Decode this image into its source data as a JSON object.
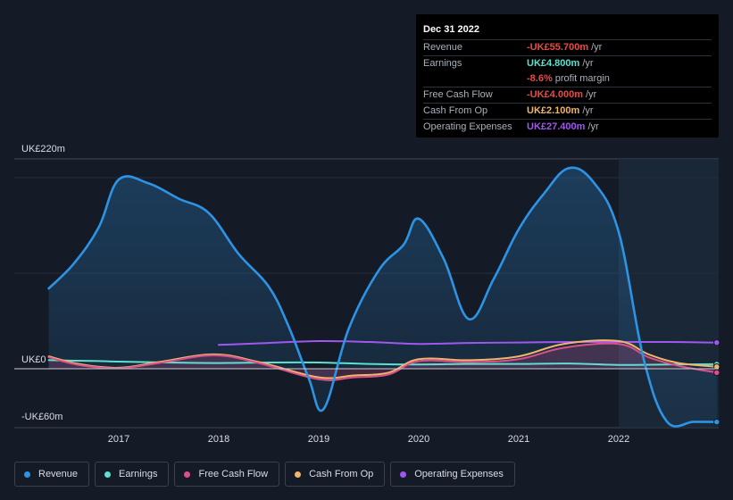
{
  "tooltip": {
    "date": "Dec 31 2022",
    "rows": [
      {
        "label": "Revenue",
        "value": "-UK£55.700m",
        "unit": "/yr",
        "color": "#e84a4a"
      },
      {
        "label": "Earnings",
        "value": "UK£4.800m",
        "unit": "/yr",
        "color": "#5de0cf"
      },
      {
        "label": "",
        "value": "-8.6%",
        "unit": "profit margin",
        "color": "#e84a4a"
      },
      {
        "label": "Free Cash Flow",
        "value": "-UK£4.000m",
        "unit": "/yr",
        "color": "#e84a4a"
      },
      {
        "label": "Cash From Op",
        "value": "UK£2.100m",
        "unit": "/yr",
        "color": "#f0b46e"
      },
      {
        "label": "Operating Expenses",
        "value": "UK£27.400m",
        "unit": "/yr",
        "color": "#a057f0"
      }
    ]
  },
  "legend": [
    {
      "label": "Revenue",
      "color": "#2d94e5"
    },
    {
      "label": "Earnings",
      "color": "#5de0cf"
    },
    {
      "label": "Free Cash Flow",
      "color": "#d9518c"
    },
    {
      "label": "Cash From Op",
      "color": "#f0b46e"
    },
    {
      "label": "Operating Expenses",
      "color": "#a057f0"
    }
  ],
  "chart_data": {
    "type": "line",
    "ylim": [
      -60,
      220
    ],
    "y_tick_labels": [
      {
        "value": 220,
        "label": "UK£220m"
      },
      {
        "value": 0,
        "label": "UK£0"
      },
      {
        "value": -60,
        "label": "-UK£60m"
      }
    ],
    "x_tick_labels": [
      {
        "value": 2017,
        "label": "2017"
      },
      {
        "value": 2018,
        "label": "2018"
      },
      {
        "value": 2019,
        "label": "2019"
      },
      {
        "value": 2020,
        "label": "2020"
      },
      {
        "value": 2021,
        "label": "2021"
      },
      {
        "value": 2022,
        "label": "2022"
      }
    ],
    "xlim": [
      2016.05,
      2022.98
    ],
    "forecast_start": 2022.0,
    "series": [
      {
        "name": "Revenue",
        "color": "#2d94e5",
        "fill": true,
        "x": [
          2016.3,
          2016.55,
          2016.8,
          2017.0,
          2017.3,
          2017.6,
          2017.9,
          2018.2,
          2018.5,
          2018.7,
          2018.9,
          2019.05,
          2019.3,
          2019.6,
          2019.85,
          2020.0,
          2020.25,
          2020.5,
          2020.75,
          2021.0,
          2021.25,
          2021.5,
          2021.75,
          2022.0,
          2022.25,
          2022.48,
          2022.75,
          2022.98
        ],
        "y": [
          84,
          110,
          148,
          198,
          194,
          178,
          163,
          120,
          86,
          44,
          -10,
          -42,
          42,
          103,
          130,
          157,
          115,
          52,
          94,
          146,
          183,
          210,
          195,
          143,
          10,
          -55,
          -55.5,
          -55.7
        ]
      },
      {
        "name": "Earnings",
        "color": "#5de0cf",
        "fill": false,
        "x": [
          2016.3,
          2016.8,
          2017.0,
          2017.5,
          2018.0,
          2018.5,
          2019.0,
          2019.5,
          2020.0,
          2020.5,
          2021.0,
          2021.5,
          2022.0,
          2022.5,
          2022.98
        ],
        "y": [
          9,
          8,
          7.5,
          6.5,
          6,
          6.5,
          6.5,
          5,
          4.5,
          5,
          5,
          5.5,
          4,
          4.5,
          4.8
        ]
      },
      {
        "name": "Free Cash Flow",
        "color": "#d9518c",
        "fill": true,
        "x": [
          2016.3,
          2016.6,
          2017.0,
          2017.4,
          2017.95,
          2018.4,
          2019.0,
          2019.35,
          2019.7,
          2020.0,
          2020.5,
          2021.0,
          2021.45,
          2022.0,
          2022.3,
          2022.6,
          2022.98
        ],
        "y": [
          12,
          4,
          0.5,
          6,
          14,
          6,
          -11,
          -9,
          -6,
          8,
          7,
          10,
          22,
          26,
          12,
          3,
          -4
        ]
      },
      {
        "name": "Cash From Op",
        "color": "#f0b46e",
        "fill": false,
        "x": [
          2016.3,
          2016.6,
          2017.0,
          2017.4,
          2017.95,
          2018.4,
          2019.0,
          2019.35,
          2019.7,
          2020.0,
          2020.5,
          2021.0,
          2021.45,
          2022.0,
          2022.3,
          2022.6,
          2022.98
        ],
        "y": [
          13,
          5,
          1,
          7,
          15,
          7,
          -9,
          -7,
          -4,
          10,
          9,
          13,
          26,
          29,
          15,
          6,
          2.1
        ]
      },
      {
        "name": "Operating Expenses",
        "color": "#a057f0",
        "fill": false,
        "x": [
          2018.0,
          2018.5,
          2019.0,
          2019.5,
          2020.0,
          2020.5,
          2021.0,
          2021.5,
          2022.0,
          2022.5,
          2022.98
        ],
        "y": [
          25,
          27,
          29,
          28,
          26,
          27,
          27.5,
          28,
          28,
          28,
          27.4
        ]
      }
    ]
  }
}
